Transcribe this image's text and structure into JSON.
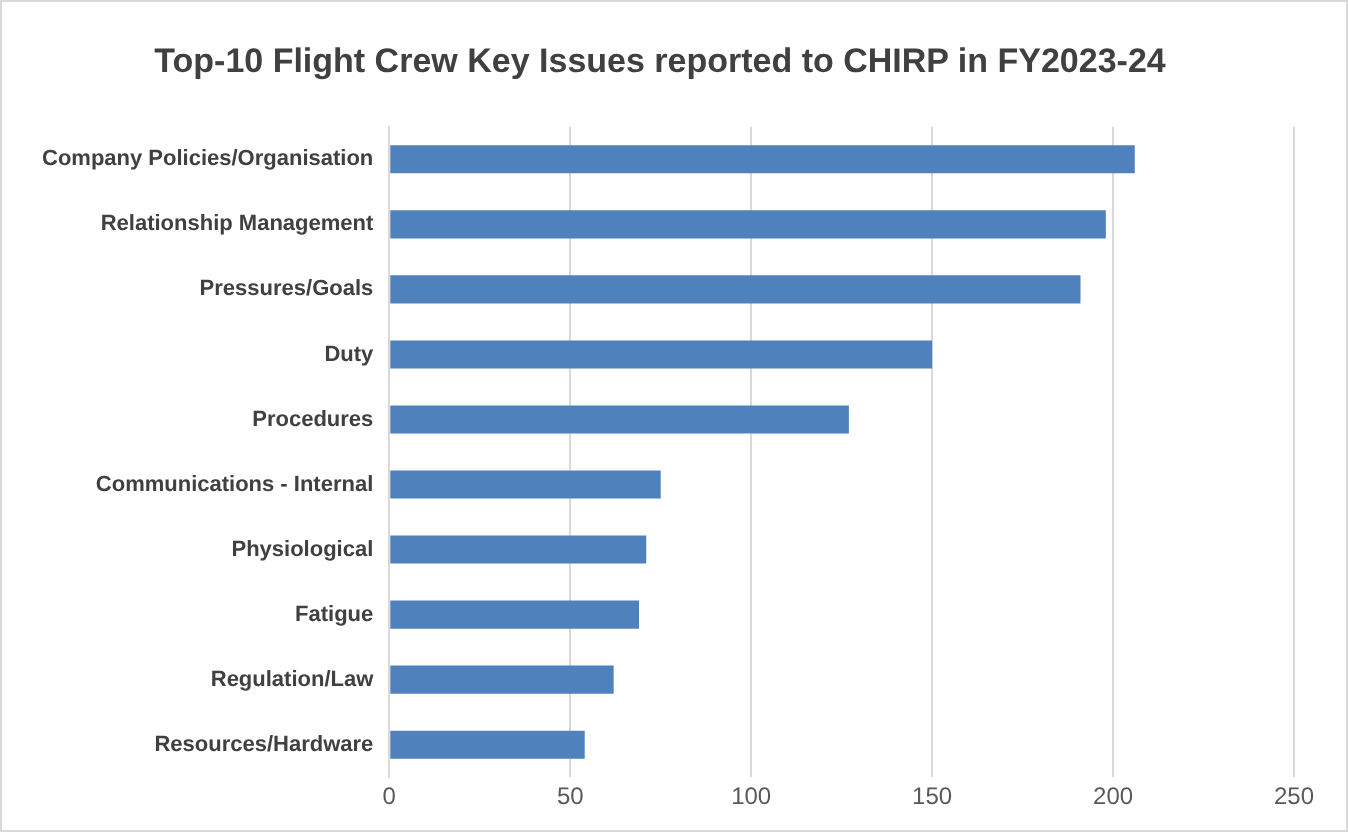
{
  "chart_data": {
    "type": "bar",
    "orientation": "horizontal",
    "title": "Top-10 Flight Crew Key Issues reported to CHIRP in FY2023-24",
    "categories": [
      "Company Policies/Organisation",
      "Relationship Management",
      "Pressures/Goals",
      "Duty",
      "Procedures",
      "Communications - Internal",
      "Physiological",
      "Fatigue",
      "Regulation/Law",
      "Resources/Hardware"
    ],
    "values": [
      206,
      198,
      191,
      150,
      127,
      75,
      71,
      69,
      62,
      54
    ],
    "color": "#4f81bd",
    "xlim": [
      0,
      250
    ],
    "xticks": [
      0,
      50,
      100,
      150,
      200,
      250
    ],
    "grid": "x",
    "legend": false
  }
}
